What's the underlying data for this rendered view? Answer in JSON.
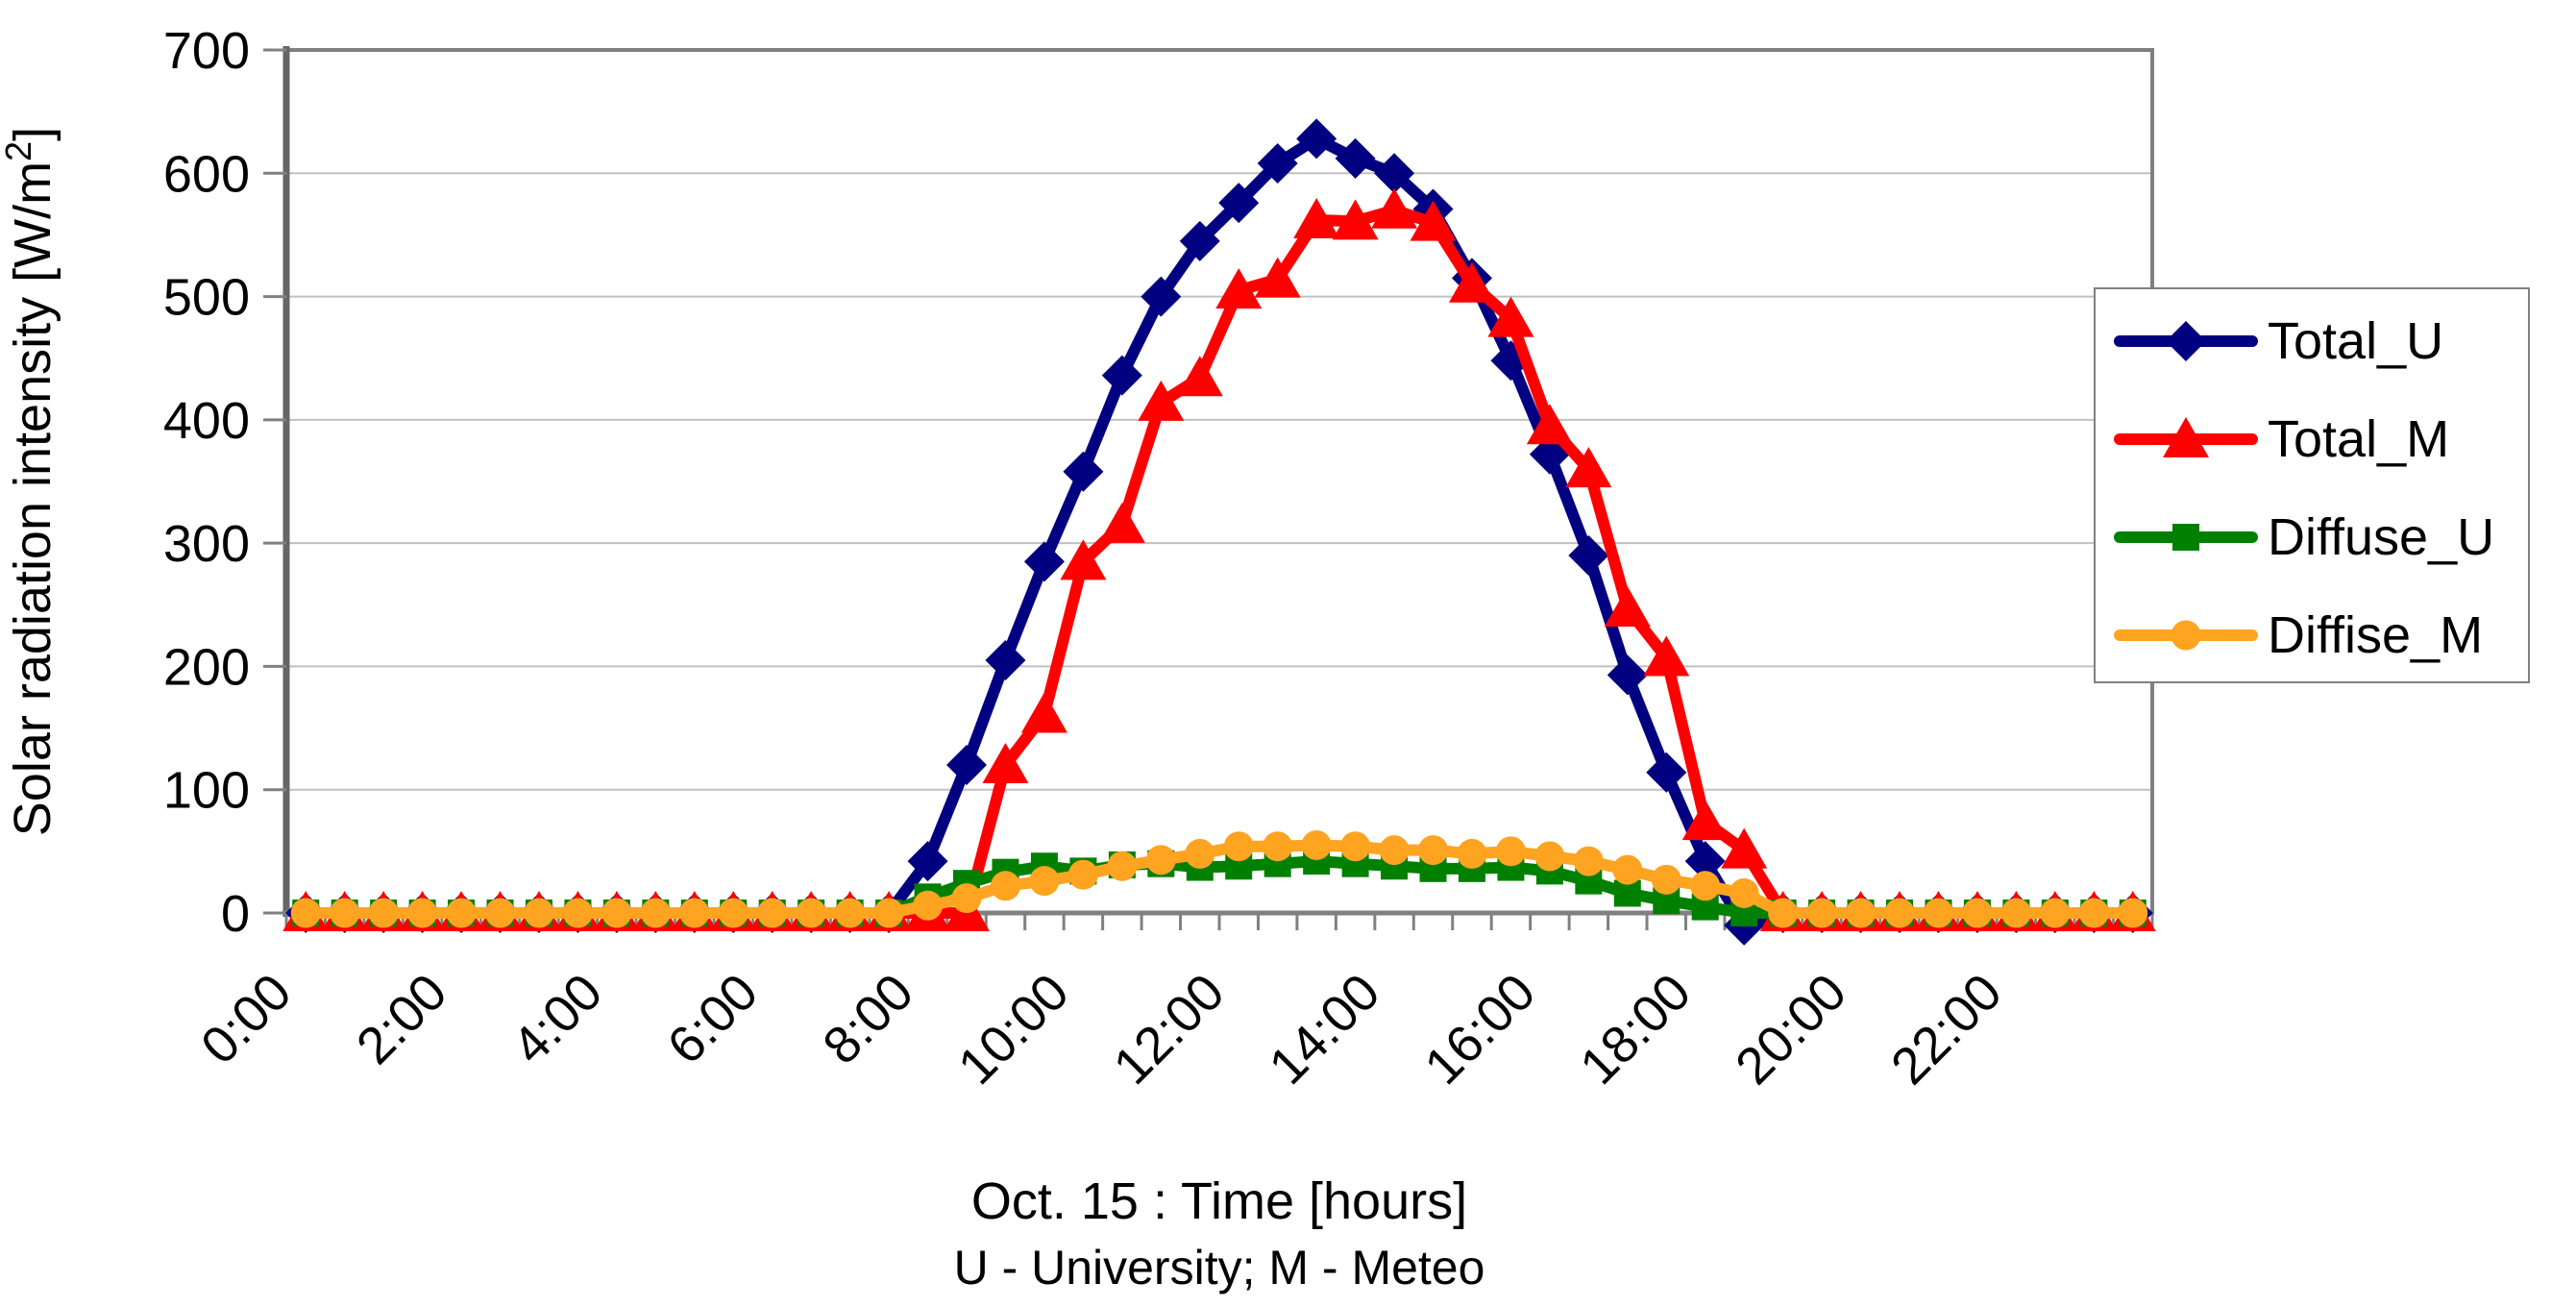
{
  "chart_data": {
    "type": "line",
    "title": "",
    "xlabel": "Oct. 15 : Time [hours]",
    "xlabel2": "U - University; M - Meteo",
    "ylabel": "Solar radiation intensity [W/m²]",
    "ylim": [
      0,
      700
    ],
    "y_ticks": [
      0,
      100,
      200,
      300,
      400,
      500,
      600,
      700
    ],
    "y_tick_labels": [
      "0",
      "100",
      "200",
      "300",
      "400",
      "500",
      "600",
      "700"
    ],
    "x_tick_labels": [
      "0:00",
      "2:00",
      "4:00",
      "6:00",
      "8:00",
      "10:00",
      "12:00",
      "14:00",
      "16:00",
      "18:00",
      "20:00",
      "22:00"
    ],
    "x_interval_minutes": 30,
    "points_per_day": 48,
    "grid": "horizontal",
    "legend_position": "right",
    "colors": {
      "gridline": "#C0C0C0",
      "plot_border": "#808080",
      "axis_line": "#666666",
      "tick": "#808080",
      "text": "#000000",
      "background": "#FFFFFF"
    },
    "series": [
      {
        "name": "Total_U",
        "color": "#000080",
        "marker": "diamond",
        "values": [
          0,
          0,
          0,
          0,
          0,
          0,
          0,
          0,
          0,
          0,
          0,
          0,
          0,
          0,
          0,
          0,
          42,
          120,
          205,
          285,
          358,
          436,
          500,
          545,
          576,
          608,
          628,
          612,
          600,
          571,
          515,
          448,
          372,
          290,
          193,
          114,
          42,
          -10,
          0,
          0,
          0,
          0,
          0,
          0,
          0,
          0,
          0,
          0
        ]
      },
      {
        "name": "Total_M",
        "color": "#FF0000",
        "marker": "triangle",
        "values": [
          0,
          0,
          0,
          0,
          0,
          0,
          0,
          0,
          0,
          0,
          0,
          0,
          0,
          0,
          0,
          0,
          0,
          0,
          120,
          161,
          285,
          315,
          414,
          434,
          505,
          514,
          562,
          561,
          570,
          560,
          510,
          482,
          395,
          360,
          247,
          207,
          74,
          51,
          0,
          0,
          0,
          0,
          0,
          0,
          0,
          0,
          0,
          0
        ]
      },
      {
        "name": "Diffuse_U",
        "color": "#008000",
        "marker": "square",
        "values": [
          0,
          0,
          0,
          0,
          0,
          0,
          0,
          0,
          0,
          0,
          0,
          0,
          0,
          0,
          0,
          0,
          13,
          24,
          33,
          38,
          34,
          39,
          40,
          37,
          38,
          40,
          42,
          40,
          38,
          36,
          36,
          37,
          34,
          26,
          16,
          10,
          5,
          0,
          0,
          0,
          0,
          0,
          0,
          0,
          0,
          0,
          0,
          0
        ]
      },
      {
        "name": "Diffise_M",
        "color": "#FFA420",
        "marker": "circle",
        "values": [
          0,
          0,
          0,
          0,
          0,
          0,
          0,
          0,
          0,
          0,
          0,
          0,
          0,
          0,
          0,
          0,
          6,
          12,
          22,
          26,
          31,
          38,
          43,
          48,
          54,
          54,
          55,
          54,
          51,
          51,
          48,
          50,
          46,
          42,
          35,
          27,
          22,
          16,
          0,
          0,
          0,
          0,
          0,
          0,
          0,
          0,
          0,
          0
        ]
      }
    ]
  }
}
